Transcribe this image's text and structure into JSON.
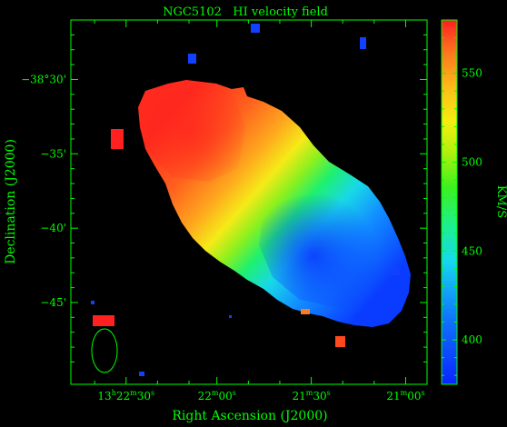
{
  "chart_data": {
    "type": "heatmap",
    "title": "NGC5102   HI velocity field",
    "xlabel": "Right Ascension (J2000)",
    "ylabel": "Declination (J2000)",
    "colorbar_label": "KM/S",
    "colorbar_range": [
      375,
      580
    ],
    "colorbar_ticks": [
      {
        "value": 400,
        "label": "400"
      },
      {
        "value": 450,
        "label": "450"
      },
      {
        "value": 500,
        "label": "500"
      },
      {
        "value": 550,
        "label": "550"
      }
    ],
    "x_ticks": [
      {
        "pos": 0.155,
        "h": "13",
        "m": "22",
        "s": "30",
        "show_h": true
      },
      {
        "pos": 0.41,
        "h": "",
        "m": "22",
        "s": "00",
        "show_h": false
      },
      {
        "pos": 0.675,
        "h": "",
        "m": "21",
        "s": "30",
        "show_h": false
      },
      {
        "pos": 0.94,
        "h": "",
        "m": "21",
        "s": "00",
        "show_h": false
      }
    ],
    "y_ticks": [
      {
        "dec": -30,
        "label": "−38°30'"
      },
      {
        "dec": -35,
        "label": "−35'"
      },
      {
        "dec": -40,
        "label": "−40'"
      },
      {
        "dec": -45,
        "label": "−45'"
      }
    ],
    "dec_range": [
      -50.5,
      -26
    ],
    "colors": {
      "axes": "#00ff00",
      "background": "#000000"
    },
    "beam_ellipse": true
  }
}
